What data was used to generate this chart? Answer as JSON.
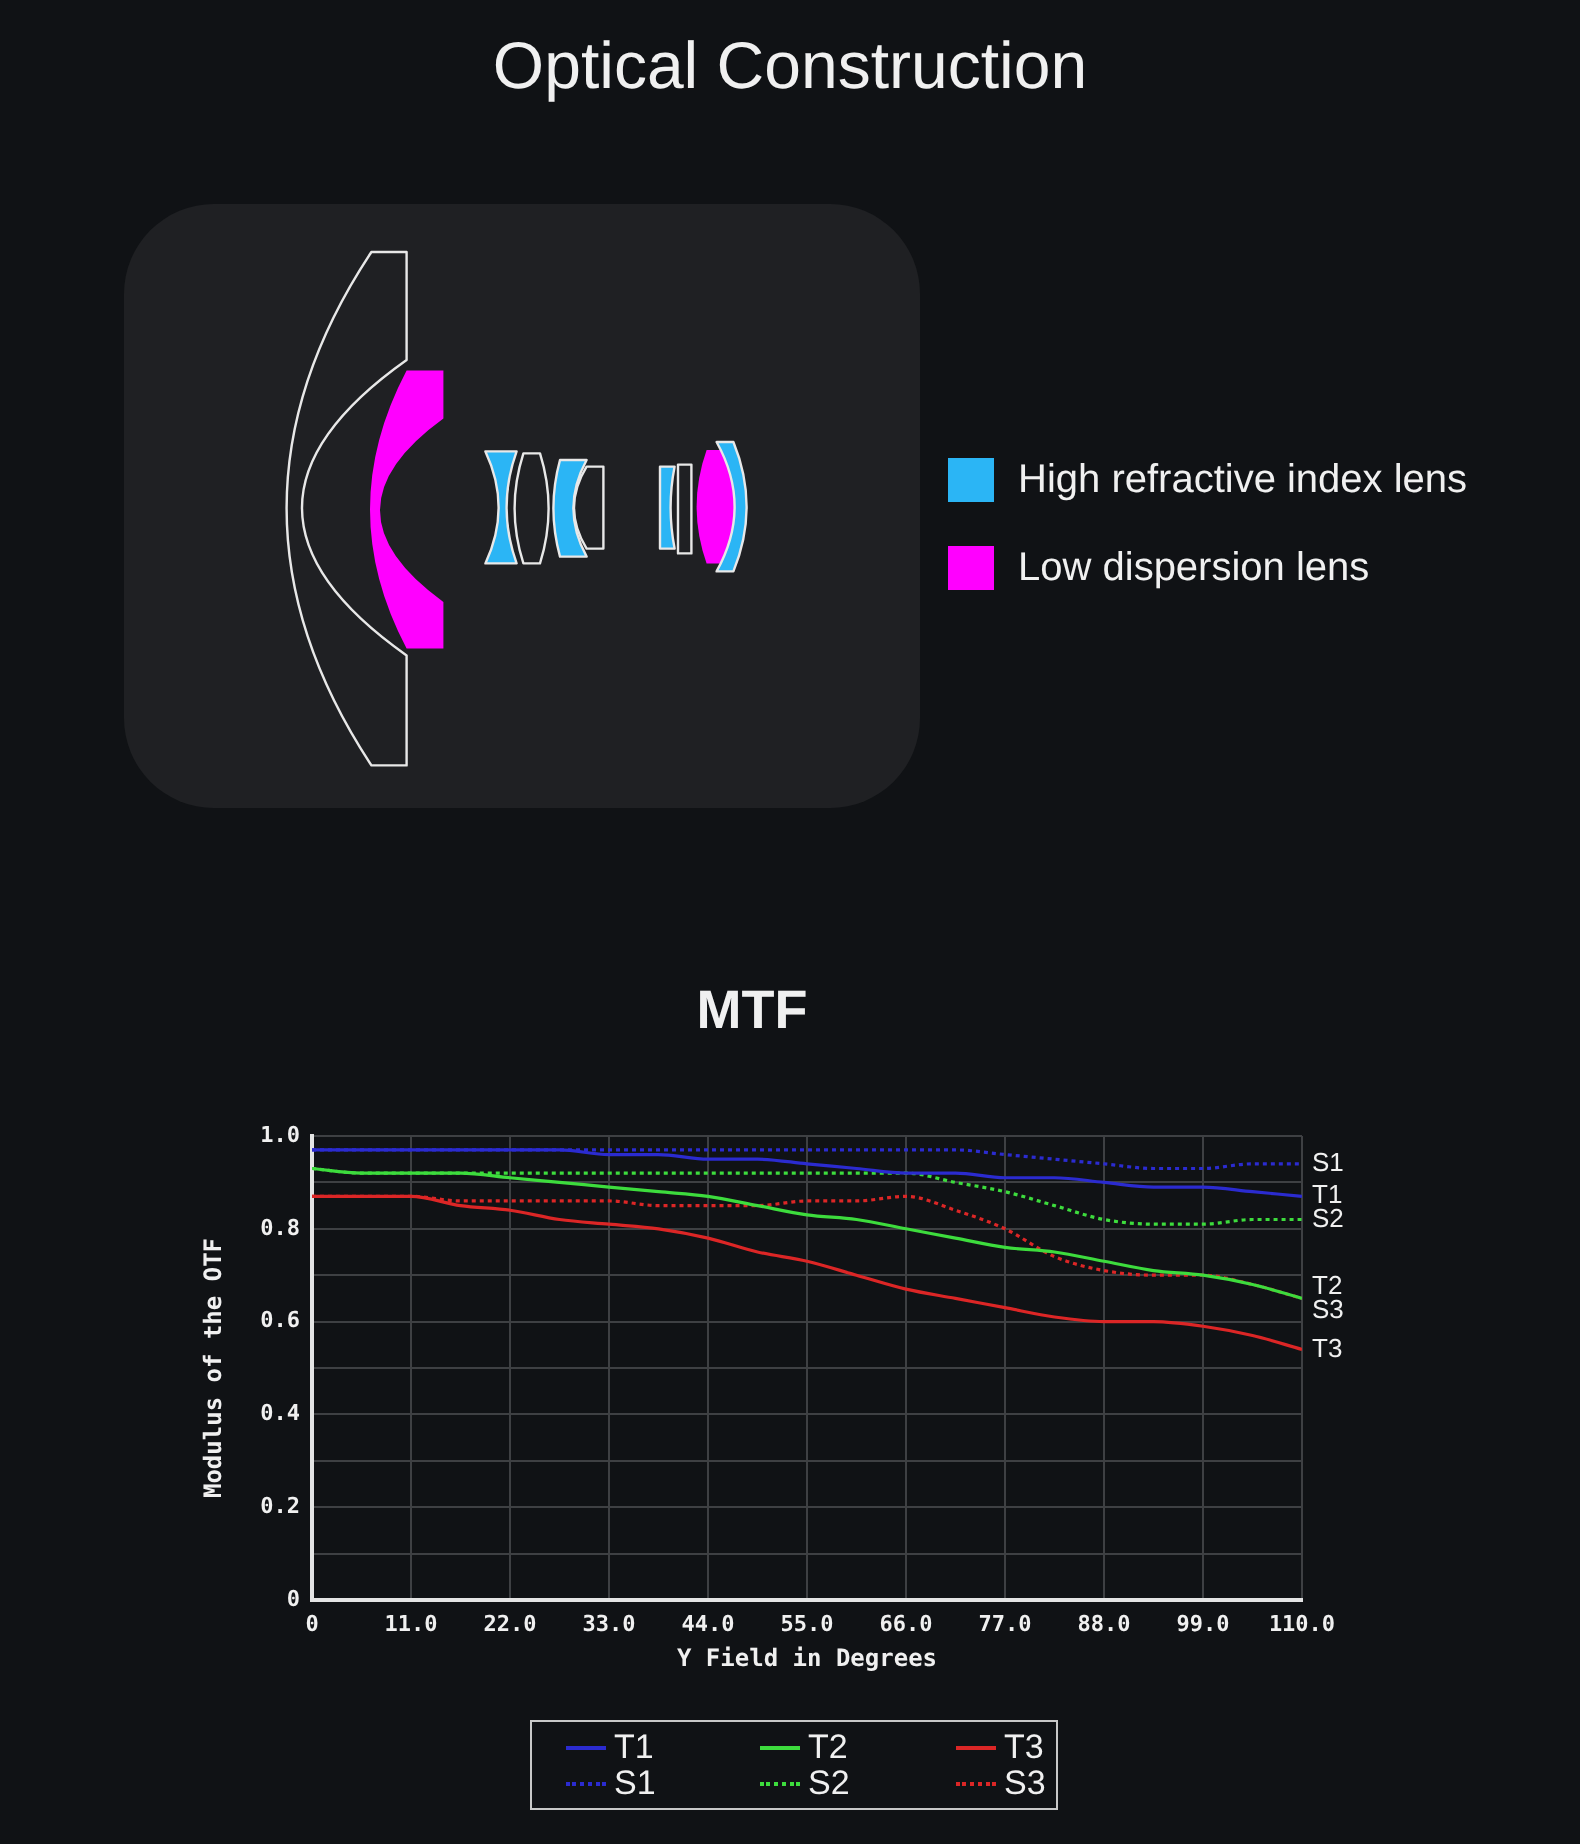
{
  "chart_data": [
    {
      "type": "other",
      "title": "Optical Construction",
      "annotations": [
        "High refractive index lens",
        "Low dispersion lens"
      ]
    },
    {
      "type": "line",
      "title": "MTF",
      "xlabel": "Y Field in Degrees",
      "ylabel": "Modulus of the OTF",
      "x": [
        0,
        5.5,
        11,
        16.5,
        22,
        27.5,
        33,
        38.5,
        44,
        49.5,
        55,
        60.5,
        66,
        71.5,
        77,
        82.5,
        88,
        93.5,
        99,
        104.5,
        110
      ],
      "series": [
        {
          "name": "T1",
          "color": "#2b2bd0",
          "line_style": "solid",
          "values": [
            0.97,
            0.97,
            0.97,
            0.97,
            0.97,
            0.97,
            0.96,
            0.96,
            0.95,
            0.95,
            0.94,
            0.93,
            0.92,
            0.92,
            0.91,
            0.91,
            0.9,
            0.89,
            0.89,
            0.88,
            0.87
          ]
        },
        {
          "name": "T2",
          "color": "#3ddc3d",
          "line_style": "solid",
          "values": [
            0.93,
            0.92,
            0.92,
            0.92,
            0.91,
            0.9,
            0.89,
            0.88,
            0.87,
            0.85,
            0.83,
            0.82,
            0.8,
            0.78,
            0.76,
            0.75,
            0.73,
            0.71,
            0.7,
            0.68,
            0.65
          ]
        },
        {
          "name": "T3",
          "color": "#dc2626",
          "line_style": "solid",
          "values": [
            0.87,
            0.87,
            0.87,
            0.85,
            0.84,
            0.82,
            0.81,
            0.8,
            0.78,
            0.75,
            0.73,
            0.7,
            0.67,
            0.65,
            0.63,
            0.61,
            0.6,
            0.6,
            0.59,
            0.57,
            0.54
          ]
        },
        {
          "name": "S1",
          "color": "#2b2bd0",
          "line_style": "dotted",
          "values": [
            0.97,
            0.97,
            0.97,
            0.97,
            0.97,
            0.97,
            0.97,
            0.97,
            0.97,
            0.97,
            0.97,
            0.97,
            0.97,
            0.97,
            0.96,
            0.95,
            0.94,
            0.93,
            0.93,
            0.94,
            0.94
          ]
        },
        {
          "name": "S2",
          "color": "#3ddc3d",
          "line_style": "dotted",
          "values": [
            0.93,
            0.92,
            0.92,
            0.92,
            0.92,
            0.92,
            0.92,
            0.92,
            0.92,
            0.92,
            0.92,
            0.92,
            0.92,
            0.9,
            0.88,
            0.85,
            0.82,
            0.81,
            0.81,
            0.82,
            0.82
          ]
        },
        {
          "name": "S3",
          "color": "#dc2626",
          "line_style": "dotted",
          "values": [
            0.87,
            0.87,
            0.87,
            0.86,
            0.86,
            0.86,
            0.86,
            0.85,
            0.85,
            0.85,
            0.86,
            0.86,
            0.87,
            0.84,
            0.8,
            0.74,
            0.71,
            0.7,
            0.7,
            0.68,
            0.65
          ]
        }
      ],
      "xlim": [
        0,
        110
      ],
      "ylim": [
        0,
        1
      ],
      "xticks": [
        0,
        {
          "value": 11,
          "label": "11.0"
        },
        {
          "value": 22,
          "label": "22.0"
        },
        {
          "value": 33,
          "label": "33.0"
        },
        {
          "value": 44,
          "label": "44.0"
        },
        {
          "value": 55,
          "label": "55.0"
        },
        {
          "value": 66,
          "label": "66.0"
        },
        {
          "value": 77,
          "label": "77.0"
        },
        {
          "value": 88,
          "label": "88.0"
        },
        {
          "value": 99,
          "label": "99.0"
        },
        {
          "value": 110,
          "label": "110.0"
        }
      ],
      "yticks": [
        0,
        {
          "value": 0.1,
          "label": null
        },
        0.2,
        {
          "value": 0.3,
          "label": null
        },
        0.4,
        {
          "value": 0.5,
          "label": null
        },
        0.6,
        {
          "value": 0.7,
          "label": null
        },
        0.8,
        {
          "value": 0.9,
          "label": null
        },
        {
          "value": 1,
          "label": "1.0"
        }
      ],
      "grid": true,
      "legend": "bottom",
      "marker": "none"
    }
  ]
}
